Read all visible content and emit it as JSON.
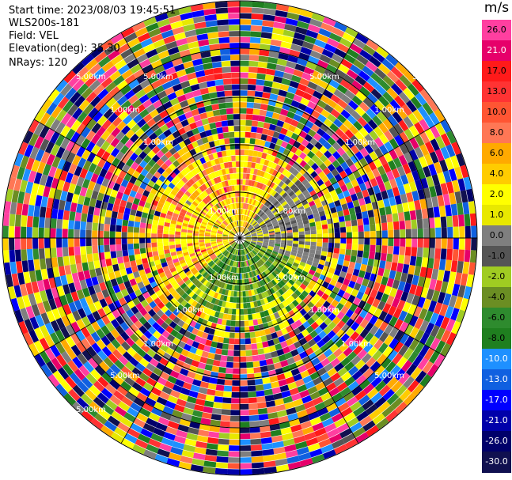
{
  "header": {
    "start_time": "Start time: 2023/08/03 19:45:51",
    "instrument": "WLS200s-181",
    "field": "Field: VEL",
    "elevation": "Elevation(deg): 35.30",
    "nrays": "NRays: 120"
  },
  "colorbar": {
    "unit": "m/s",
    "ticks": [
      "26.0",
      "21.0",
      "17.0",
      "13.0",
      "10.0",
      "8.0",
      "6.0",
      "4.0",
      "2.0",
      "1.0",
      "0.0",
      "-1.0",
      "-2.0",
      "-4.0",
      "-6.0",
      "-8.0",
      "-10.0",
      "-13.0",
      "-17.0",
      "-21.0",
      "-26.0",
      "-30.0"
    ],
    "colors": [
      "#ff3fa0",
      "#e6006a",
      "#ff1a1a",
      "#ff3333",
      "#ff5533",
      "#ff7755",
      "#ffaa00",
      "#ffcc00",
      "#ffff00",
      "#e8e800",
      "#7f7f7f",
      "#555555",
      "#a0cc22",
      "#6b8e23",
      "#2e8b2e",
      "#1f7f1f",
      "#1e90ff",
      "#1060e0",
      "#0000ff",
      "#0000aa",
      "#00006a",
      "#101050"
    ]
  },
  "chart_data": {
    "type": "heatmap",
    "projection": "polar PPI scan",
    "field": "VEL",
    "unit": "m/s",
    "nrays": 120,
    "range_rings": [
      "1.00km",
      "1.00km",
      "1.00km",
      "1.00km",
      "1.00km",
      "1.00km",
      "1.00km",
      "1.00km",
      "1.00km",
      "1.00km",
      "1.00km",
      "1.00km",
      "5.00km",
      "5.00km",
      "5.00km",
      "5.00km",
      "5.00km",
      "5.00km",
      "5.00km",
      "5.00km"
    ],
    "description_of_pattern": "near-range gates show coherent radial velocity: positive (yellow/orange, 1 to 10 m/s) in the north-west half, near-zero (grey) in the east, negative (green, -4 to -8 m/s) to the south; far-range gates are noise"
  }
}
